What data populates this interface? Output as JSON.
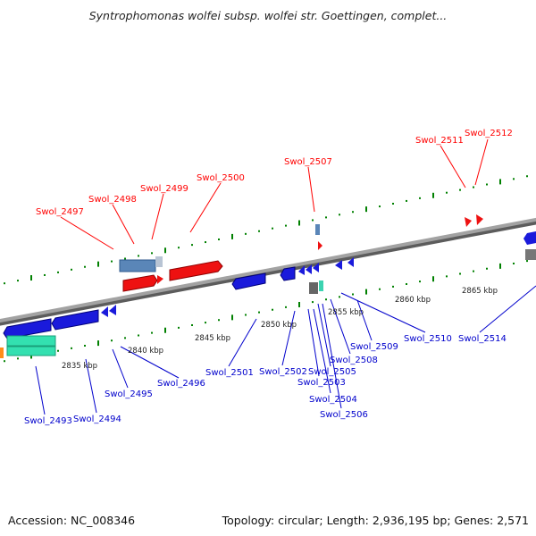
{
  "title": "Syntrophomonas wolfei subsp. wolfei str. Goettingen, complet...",
  "footer": {
    "accession": "Accession: NC_008346",
    "summary": "Topology: circular; Length: 2,936,195 bp; Genes: 2,571"
  },
  "colors": {
    "forward_label": "#ff0000",
    "reverse_label": "#0000cc",
    "tick": "#008000",
    "backbone": "#8a8a8a",
    "kbp_label": "#222222"
  },
  "kbp_labels": [
    "2835 kbp",
    "2840 kbp",
    "2845 kbp",
    "2850 kbp",
    "2855 kbp",
    "2860 kbp",
    "2865 kbp"
  ],
  "forward_genes": [
    "Swol_2497",
    "Swol_2498",
    "Swol_2499",
    "Swol_2500",
    "Swol_2507",
    "Swol_2511",
    "Swol_2512"
  ],
  "reverse_genes": [
    "Swol_2493",
    "Swol_2494",
    "Swol_2495",
    "Swol_2496",
    "Swol_2501",
    "Swol_2502",
    "Swol_2503",
    "Swol_2504",
    "Swol_2505",
    "Swol_2506",
    "Swol_2508",
    "Swol_2509",
    "Swol_2510",
    "Swol_2514"
  ]
}
